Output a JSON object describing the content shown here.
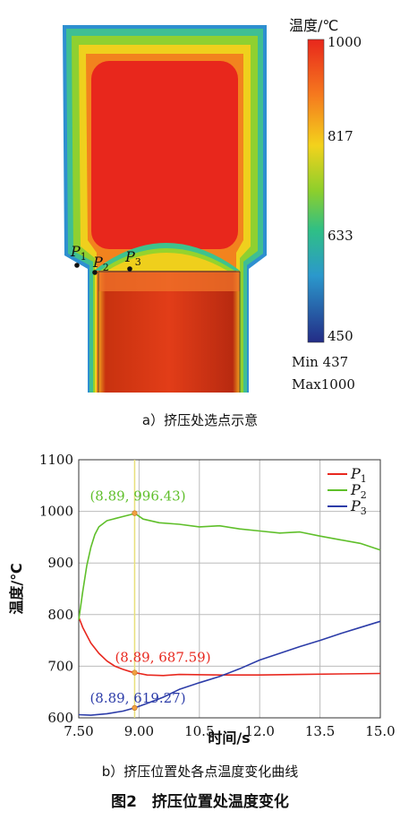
{
  "figure_a": {
    "legend_title": "温度/℃",
    "colorbar_ticks": [
      "1000",
      "817",
      "633",
      "450"
    ],
    "min_label": "Min 437",
    "max_label": "Max1000",
    "points": [
      {
        "letter": "P",
        "sub": "1"
      },
      {
        "letter": "P",
        "sub": "2"
      },
      {
        "letter": "P",
        "sub": "3"
      }
    ],
    "caption": "a）挤压处选点示意"
  },
  "chart_data": {
    "type": "line",
    "x_ticks": [
      "7.50",
      "9.00",
      "10.5",
      "12.0",
      "13.5",
      "15.0"
    ],
    "y_ticks": [
      "1100",
      "1000",
      "900",
      "800",
      "700",
      "600"
    ],
    "xlabel": "时间/s",
    "ylabel": "温度/℃",
    "xlim": [
      7.5,
      15.0
    ],
    "ylim": [
      600,
      1100
    ],
    "grid": true,
    "legend_position": "top-right",
    "marker_x": 8.89,
    "series": [
      {
        "name_letter": "P",
        "name_sub": "1",
        "color": "#e8281f",
        "x": [
          7.5,
          7.6,
          7.8,
          8.0,
          8.2,
          8.4,
          8.6,
          8.8,
          8.89,
          9.2,
          9.6,
          10.0,
          11.0,
          12.0,
          13.0,
          14.0,
          15.0
        ],
        "y": [
          795,
          775,
          745,
          725,
          710,
          700,
          694,
          689,
          687.59,
          683,
          682,
          684,
          683,
          683,
          684,
          685,
          686
        ]
      },
      {
        "name_letter": "P",
        "name_sub": "2",
        "color": "#5fbf2a",
        "x": [
          7.5,
          7.6,
          7.7,
          7.8,
          7.9,
          8.0,
          8.2,
          8.4,
          8.6,
          8.8,
          8.89,
          9.1,
          9.5,
          10.0,
          10.5,
          11.0,
          11.5,
          12.0,
          12.5,
          13.0,
          13.5,
          14.0,
          14.5,
          15.0
        ],
        "y": [
          790,
          845,
          895,
          930,
          955,
          970,
          982,
          986,
          990,
          994,
          996.43,
          985,
          978,
          975,
          970,
          972,
          966,
          962,
          958,
          960,
          952,
          945,
          938,
          925
        ]
      },
      {
        "name_letter": "P",
        "name_sub": "3",
        "color": "#2c3ca8",
        "x": [
          7.5,
          7.8,
          8.2,
          8.6,
          8.89,
          9.2,
          9.6,
          10.0,
          10.5,
          11.0,
          11.5,
          12.0,
          12.5,
          13.0,
          13.5,
          14.0,
          14.5,
          15.0
        ],
        "y": [
          606,
          605,
          608,
          613,
          619.27,
          628,
          640,
          655,
          668,
          680,
          695,
          712,
          725,
          738,
          750,
          763,
          775,
          787
        ]
      }
    ],
    "annotations": [
      {
        "text": "(8.89, 996.43)",
        "x": 8.89,
        "y": 996.43,
        "color": "#5fbf2a"
      },
      {
        "text": "(8.89, 687.59)",
        "x": 8.89,
        "y": 687.59,
        "color": "#e8281f"
      },
      {
        "text": "(8.89, 619.27)",
        "x": 8.89,
        "y": 619.27,
        "color": "#2c3ca8"
      }
    ],
    "caption": "b）挤压位置处各点温度变化曲线"
  },
  "figure_title": "图2　挤压位置处温度变化"
}
